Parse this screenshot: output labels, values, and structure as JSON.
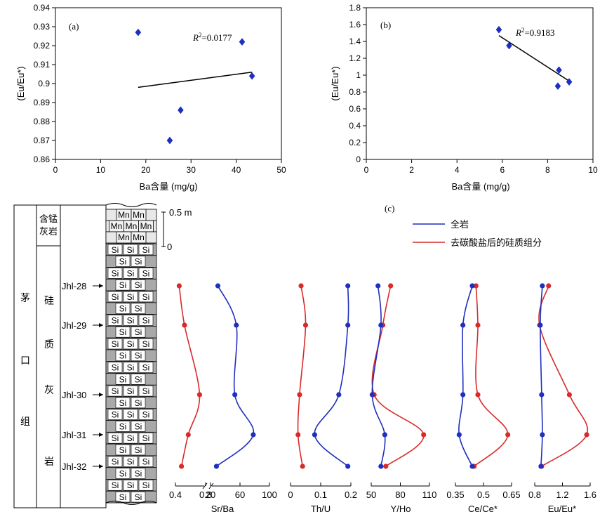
{
  "chart_data": [
    {
      "type": "scatter",
      "panel_label": "(a)",
      "title": "",
      "xlabel": "Ba含量 (mg/g)",
      "ylabel": "(Eu/Eu*)",
      "xlim": [
        0,
        50
      ],
      "ylim": [
        0.86,
        0.94
      ],
      "xticks": [
        "0",
        "10",
        "20",
        "30",
        "40",
        "50"
      ],
      "yticks": [
        "0.86",
        "0.87",
        "0.88",
        "0.89",
        "0.9",
        "0.91",
        "0.92",
        "0.93",
        "0.94"
      ],
      "points": [
        {
          "x": 18.3,
          "y": 0.927
        },
        {
          "x": 25.3,
          "y": 0.87
        },
        {
          "x": 27.7,
          "y": 0.886
        },
        {
          "x": 41.3,
          "y": 0.922
        },
        {
          "x": 43.5,
          "y": 0.904
        }
      ],
      "trendline": {
        "x": [
          18.3,
          43.5
        ],
        "y": [
          0.898,
          0.906
        ]
      },
      "r2_label": "R",
      "r2_sup": "2",
      "r2_value": "=0.0177",
      "grid": false
    },
    {
      "type": "scatter",
      "panel_label": "(b)",
      "title": "",
      "xlabel": "Ba含量 (mg/g)",
      "ylabel": "(Eu/Eu*)",
      "xlim": [
        0,
        10
      ],
      "ylim": [
        0,
        1.8
      ],
      "xticks": [
        "0",
        "2",
        "4",
        "6",
        "8",
        "10"
      ],
      "yticks": [
        "0",
        "0.2",
        "0.4",
        "0.6",
        "0.8",
        "1",
        "1.2",
        "1.4",
        "1.6",
        "1.8"
      ],
      "points": [
        {
          "x": 5.85,
          "y": 1.54
        },
        {
          "x": 6.3,
          "y": 1.35
        },
        {
          "x": 8.45,
          "y": 0.87
        },
        {
          "x": 8.5,
          "y": 1.06
        },
        {
          "x": 8.95,
          "y": 0.92
        }
      ],
      "trendline": {
        "x": [
          5.85,
          8.95
        ],
        "y": [
          1.47,
          0.93
        ]
      },
      "r2_label": "R",
      "r2_sup": "2",
      "r2_value": "=0.9183",
      "grid": false
    },
    {
      "type": "line",
      "panel_label": "(c)",
      "legend": {
        "placement": "top-right",
        "entries": [
          {
            "label": "全岩",
            "color": "#1f2fbf"
          },
          {
            "label": "去碳酸盐后的硅质组分",
            "color": "#d92a2a"
          }
        ]
      },
      "samples": [
        "Jhl-28",
        "Jhl-29",
        "Jhl-30",
        "Jhl-31",
        "Jhl-32"
      ],
      "panels": [
        {
          "label": "Sr/Ba",
          "broken_axis": true,
          "ticks": [
            "0.4",
            "0.8",
            "20",
            "60",
            "100"
          ],
          "red": [
            0.45,
            0.52,
            0.72,
            0.57,
            0.48
          ],
          "blue": [
            30,
            55,
            53,
            78,
            28
          ]
        },
        {
          "label": "Th/U",
          "xlim": [
            0,
            0.2
          ],
          "ticks": [
            "0",
            "0.1",
            "0.2"
          ],
          "red": [
            0.035,
            0.05,
            0.03,
            0.025,
            0.04
          ],
          "blue": [
            0.19,
            0.19,
            0.16,
            0.08,
            0.19
          ]
        },
        {
          "label": "Y/Ho",
          "xlim": [
            50,
            110
          ],
          "ticks": [
            "50",
            "80",
            "110"
          ],
          "red": [
            70,
            62,
            53,
            104,
            65
          ],
          "blue": [
            57,
            60,
            51,
            64,
            60
          ]
        },
        {
          "label": "Ce/Ce*",
          "xlim": [
            0.35,
            0.65
          ],
          "ticks": [
            "0.35",
            "0.5",
            "0.65"
          ],
          "red": [
            0.46,
            0.47,
            0.47,
            0.63,
            0.45
          ],
          "blue": [
            0.44,
            0.39,
            0.39,
            0.37,
            0.44
          ]
        },
        {
          "label": "Eu/Eu*",
          "xlim": [
            0.8,
            1.6
          ],
          "ticks": [
            "0.8",
            "1.2",
            "1.6"
          ],
          "red": [
            1.0,
            0.87,
            1.3,
            1.55,
            0.9
          ],
          "blue": [
            0.91,
            0.88,
            0.9,
            0.91,
            0.89
          ]
        }
      ]
    }
  ],
  "column": {
    "formation": [
      "茅",
      "口",
      "组"
    ],
    "unit_top": [
      "含锰",
      "灰岩"
    ],
    "unit_main": [
      "硅",
      "质",
      "灰",
      "岩"
    ],
    "scale_top": "0.5 m",
    "scale_bottom": "0",
    "mn_rows": [
      [
        "Mn",
        "Mn"
      ],
      [
        "Mn",
        "Mn",
        "Mn"
      ],
      [
        "Mn",
        "Mn"
      ]
    ],
    "si_label": "Si"
  }
}
